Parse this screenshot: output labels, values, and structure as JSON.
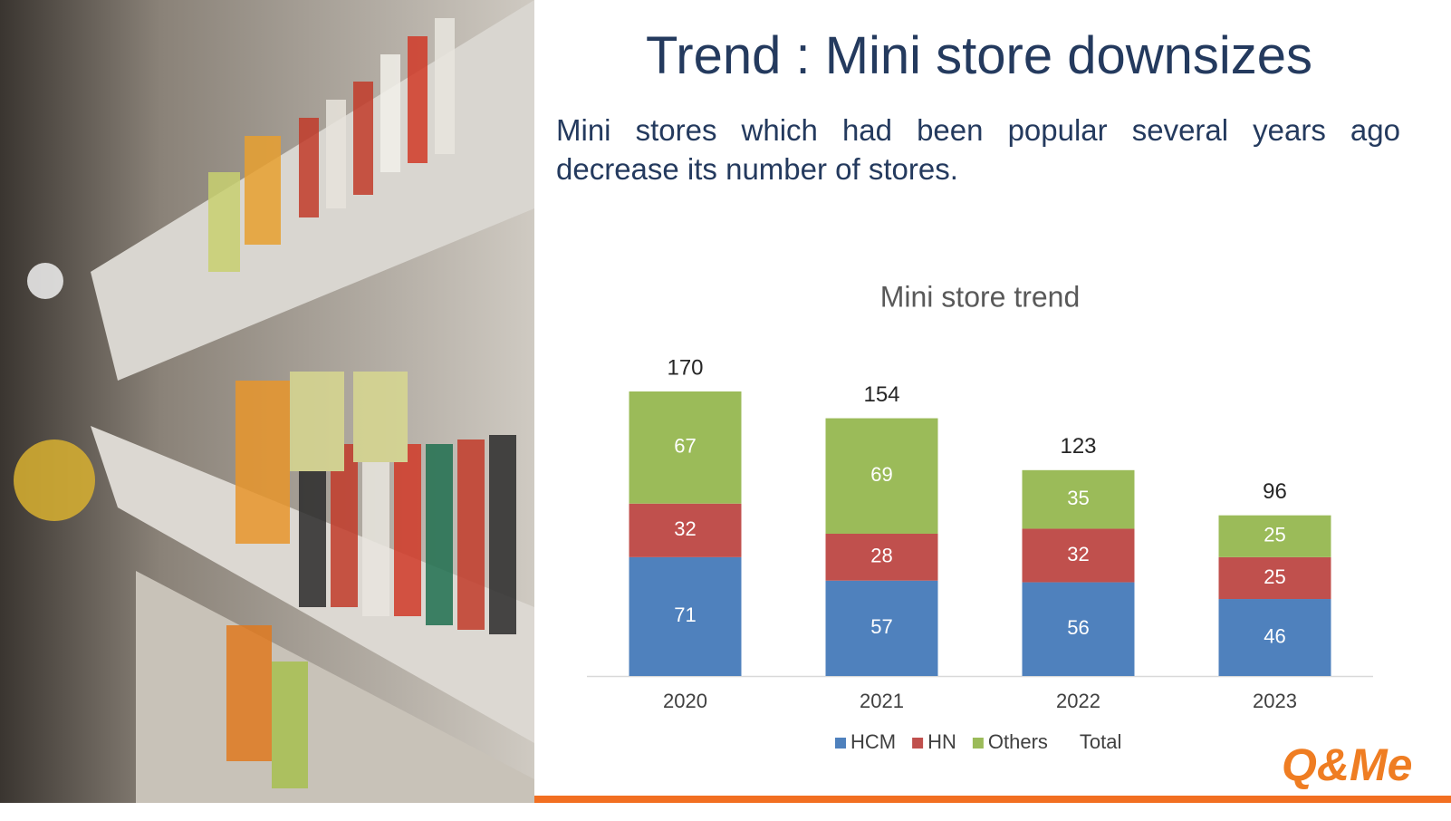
{
  "title": "Trend : Mini store downsizes",
  "subtitle": "Mini stores which had been popular several years ago decrease its number of stores.",
  "logo": "Q&Me",
  "chart_data": {
    "type": "bar",
    "stacked": true,
    "title": "Mini store trend",
    "categories": [
      "2020",
      "2021",
      "2022",
      "2023"
    ],
    "series": [
      {
        "name": "HCM",
        "color": "#4f81bd",
        "values": [
          71,
          57,
          56,
          46
        ]
      },
      {
        "name": "HN",
        "color": "#c0504d",
        "values": [
          32,
          28,
          32,
          25
        ]
      },
      {
        "name": "Others",
        "color": "#9bbb59",
        "values": [
          67,
          69,
          35,
          25
        ]
      }
    ],
    "total": {
      "name": "Total",
      "values": [
        170,
        154,
        123,
        96
      ]
    },
    "legend": "bottom"
  }
}
